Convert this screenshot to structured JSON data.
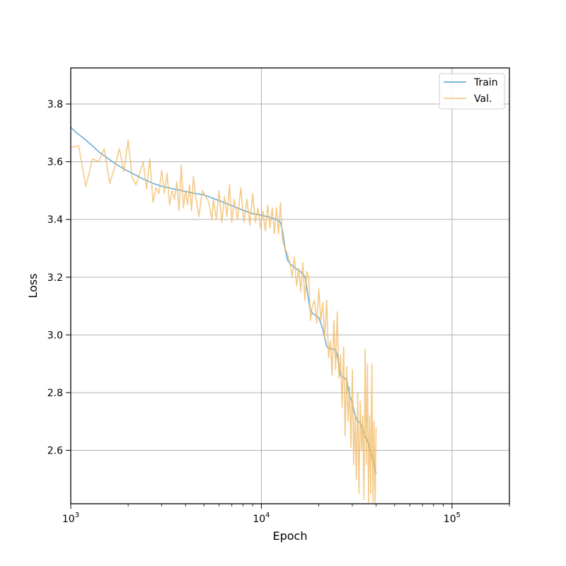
{
  "chart_data": {
    "type": "line",
    "title": "",
    "xlabel": "Epoch",
    "ylabel": "Loss",
    "xscale": "log",
    "xlim": [
      1000,
      200000
    ],
    "ylim": [
      2.415,
      3.925
    ],
    "grid": true,
    "legend_position": "top-right",
    "x_ticks": [
      {
        "value": 1000,
        "base": "10",
        "exp": "3"
      },
      {
        "value": 10000,
        "base": "10",
        "exp": "4"
      },
      {
        "value": 100000,
        "base": "10",
        "exp": "5"
      }
    ],
    "y_ticks": [
      {
        "value": 2.6,
        "label": "2.6"
      },
      {
        "value": 2.8,
        "label": "2.8"
      },
      {
        "value": 3.0,
        "label": "3.0"
      },
      {
        "value": 3.2,
        "label": "3.2"
      },
      {
        "value": 3.4,
        "label": "3.4"
      },
      {
        "value": 3.6,
        "label": "3.6"
      },
      {
        "value": 3.8,
        "label": "3.8"
      }
    ],
    "series": [
      {
        "name": "Train",
        "color": "#6baed6",
        "x": [
          1000,
          1050,
          1100,
          1200,
          1300,
          1400,
          1500,
          1700,
          1900,
          2100,
          2400,
          2700,
          3000,
          3500,
          4000,
          4500,
          5000,
          5500,
          6000,
          7000,
          8000,
          9000,
          10000,
          11000,
          12000,
          12600,
          13000,
          13300,
          13700,
          14200,
          15000,
          16000,
          17000,
          17500,
          18000,
          18500,
          19000,
          20000,
          21000,
          22000,
          22500,
          23000,
          24500,
          25000,
          26000,
          27000,
          28000,
          29000,
          30000,
          31000,
          32000,
          33000,
          34000,
          35000,
          36000,
          37000,
          38000,
          39000,
          40000
        ],
        "values": [
          3.72,
          3.705,
          3.695,
          3.675,
          3.655,
          3.635,
          3.62,
          3.595,
          3.575,
          3.56,
          3.54,
          3.525,
          3.515,
          3.505,
          3.497,
          3.49,
          3.485,
          3.475,
          3.465,
          3.448,
          3.432,
          3.42,
          3.415,
          3.408,
          3.4,
          3.39,
          3.35,
          3.3,
          3.26,
          3.245,
          3.232,
          3.22,
          3.2,
          3.14,
          3.09,
          3.075,
          3.07,
          3.06,
          3.02,
          2.96,
          2.955,
          2.953,
          2.948,
          2.93,
          2.86,
          2.852,
          2.845,
          2.79,
          2.765,
          2.72,
          2.7,
          2.695,
          2.675,
          2.645,
          2.635,
          2.605,
          2.58,
          2.55,
          2.52
        ]
      },
      {
        "name": "Val.",
        "color": "#f0b860",
        "x": [
          1000,
          1100,
          1200,
          1300,
          1400,
          1500,
          1600,
          1700,
          1800,
          1900,
          2000,
          2100,
          2200,
          2300,
          2400,
          2500,
          2600,
          2700,
          2800,
          2900,
          3000,
          3100,
          3200,
          3300,
          3400,
          3500,
          3600,
          3700,
          3800,
          3900,
          4000,
          4100,
          4200,
          4300,
          4400,
          4500,
          4700,
          4900,
          5100,
          5300,
          5500,
          5600,
          5800,
          6000,
          6200,
          6400,
          6600,
          6800,
          7000,
          7200,
          7500,
          7800,
          8100,
          8400,
          8700,
          9000,
          9300,
          9600,
          9900,
          10200,
          10500,
          10800,
          11100,
          11400,
          11700,
          12000,
          12300,
          12600,
          12900,
          13300,
          13700,
          14100,
          14500,
          14900,
          15300,
          15700,
          16100,
          16500,
          16900,
          17300,
          17700,
          18100,
          18500,
          19000,
          19500,
          20000,
          20500,
          21000,
          21500,
          22000,
          22500,
          23000,
          23500,
          24000,
          24500,
          25000,
          25500,
          26000,
          26500,
          27000,
          27500,
          28000,
          28500,
          29000,
          29500,
          30000,
          30500,
          31000,
          31500,
          32000,
          32500,
          33000,
          33500,
          34000,
          34500,
          35000,
          35500,
          36000,
          36500,
          37000,
          37500,
          38000,
          38500,
          39000,
          39500,
          40000
        ],
        "values": [
          3.65,
          3.655,
          3.515,
          3.61,
          3.6,
          3.645,
          3.525,
          3.58,
          3.645,
          3.565,
          3.675,
          3.545,
          3.52,
          3.56,
          3.6,
          3.505,
          3.61,
          3.46,
          3.51,
          3.49,
          3.57,
          3.49,
          3.56,
          3.45,
          3.5,
          3.47,
          3.53,
          3.43,
          3.59,
          3.44,
          3.5,
          3.45,
          3.52,
          3.43,
          3.55,
          3.49,
          3.41,
          3.5,
          3.48,
          3.46,
          3.4,
          3.47,
          3.4,
          3.5,
          3.39,
          3.48,
          3.41,
          3.52,
          3.39,
          3.47,
          3.4,
          3.51,
          3.39,
          3.47,
          3.38,
          3.49,
          3.39,
          3.44,
          3.37,
          3.43,
          3.36,
          3.45,
          3.37,
          3.44,
          3.35,
          3.44,
          3.35,
          3.46,
          3.33,
          3.3,
          3.28,
          3.25,
          3.2,
          3.27,
          3.17,
          3.23,
          3.15,
          3.25,
          3.12,
          3.22,
          3.2,
          3.05,
          3.1,
          3.12,
          3.04,
          3.16,
          3.05,
          3.11,
          2.99,
          3.12,
          2.92,
          2.98,
          2.86,
          3.05,
          2.88,
          3.08,
          2.85,
          2.93,
          2.75,
          2.96,
          2.65,
          2.89,
          2.7,
          2.82,
          2.61,
          2.88,
          2.55,
          2.73,
          2.5,
          2.8,
          2.45,
          2.77,
          2.6,
          2.72,
          2.43,
          2.95,
          2.55,
          2.9,
          2.42,
          2.72,
          2.45,
          2.9,
          2.42,
          2.7,
          2.42,
          2.68
        ]
      }
    ]
  }
}
